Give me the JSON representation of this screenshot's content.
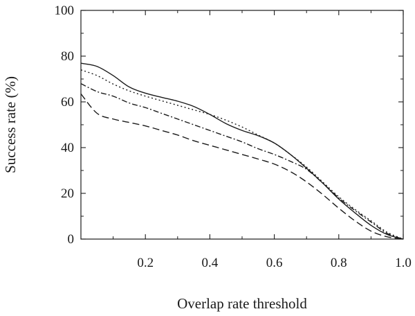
{
  "chart_data": {
    "type": "line",
    "title": "",
    "xlabel": "Overlap rate threshold",
    "ylabel": "Success rate (%)",
    "xlim": [
      0,
      1
    ],
    "ylim": [
      0,
      100
    ],
    "xticks": [
      0.2,
      0.4,
      0.6,
      0.8,
      1.0
    ],
    "xtick_labels": [
      "0.2",
      "0.4",
      "0.6",
      "0.8",
      "1.0"
    ],
    "yticks": [
      0,
      20,
      40,
      60,
      80,
      100
    ],
    "ytick_labels": [
      "0",
      "20",
      "40",
      "60",
      "80",
      "100"
    ],
    "grid": false,
    "legend": "none",
    "series": [
      {
        "style": "solid",
        "color": "#1a1a1a",
        "x": [
          0,
          0.05,
          0.1,
          0.15,
          0.2,
          0.25,
          0.3,
          0.35,
          0.4,
          0.45,
          0.5,
          0.55,
          0.6,
          0.65,
          0.7,
          0.75,
          0.8,
          0.85,
          0.9,
          0.95,
          1.0
        ],
        "y": [
          76.9,
          75.5,
          71.5,
          66.5,
          63.8,
          62.0,
          60.3,
          58.0,
          54.5,
          50.5,
          47.5,
          45.2,
          42.0,
          37.0,
          31.0,
          24.5,
          17.5,
          11.5,
          6.0,
          2.0,
          0
        ]
      },
      {
        "style": "dotted",
        "color": "#1a1a1a",
        "x": [
          0,
          0.05,
          0.1,
          0.15,
          0.2,
          0.25,
          0.3,
          0.35,
          0.4,
          0.45,
          0.5,
          0.55,
          0.6,
          0.65,
          0.7,
          0.75,
          0.8,
          0.85,
          0.9,
          0.95,
          1.0
        ],
        "y": [
          74.0,
          71.5,
          67.8,
          64.8,
          62.5,
          60.5,
          58.5,
          56.5,
          54.5,
          52.0,
          49.0,
          45.5,
          42.0,
          37.0,
          31.5,
          25.0,
          18.5,
          13.0,
          8.0,
          3.0,
          0
        ]
      },
      {
        "style": "dashdot",
        "color": "#1a1a1a",
        "x": [
          0,
          0.05,
          0.1,
          0.15,
          0.2,
          0.25,
          0.3,
          0.35,
          0.4,
          0.45,
          0.5,
          0.55,
          0.6,
          0.65,
          0.7,
          0.75,
          0.8,
          0.85,
          0.9,
          0.95,
          1.0
        ],
        "y": [
          68.0,
          64.5,
          62.5,
          59.5,
          57.5,
          55.0,
          52.5,
          50.0,
          47.5,
          45.0,
          42.5,
          39.5,
          37.0,
          34.0,
          30.5,
          24.5,
          18.0,
          12.5,
          7.5,
          2.5,
          0
        ]
      },
      {
        "style": "dashed",
        "color": "#1a1a1a",
        "x": [
          0,
          0.05,
          0.1,
          0.15,
          0.2,
          0.25,
          0.3,
          0.35,
          0.4,
          0.45,
          0.5,
          0.55,
          0.6,
          0.65,
          0.7,
          0.75,
          0.8,
          0.85,
          0.9,
          0.95,
          1.0
        ],
        "y": [
          63.5,
          55.0,
          52.5,
          51.0,
          49.5,
          47.5,
          45.5,
          43.0,
          41.0,
          39.0,
          37.0,
          35.0,
          32.8,
          29.5,
          25.0,
          19.5,
          13.5,
          8.0,
          3.5,
          1.0,
          0
        ]
      }
    ]
  }
}
